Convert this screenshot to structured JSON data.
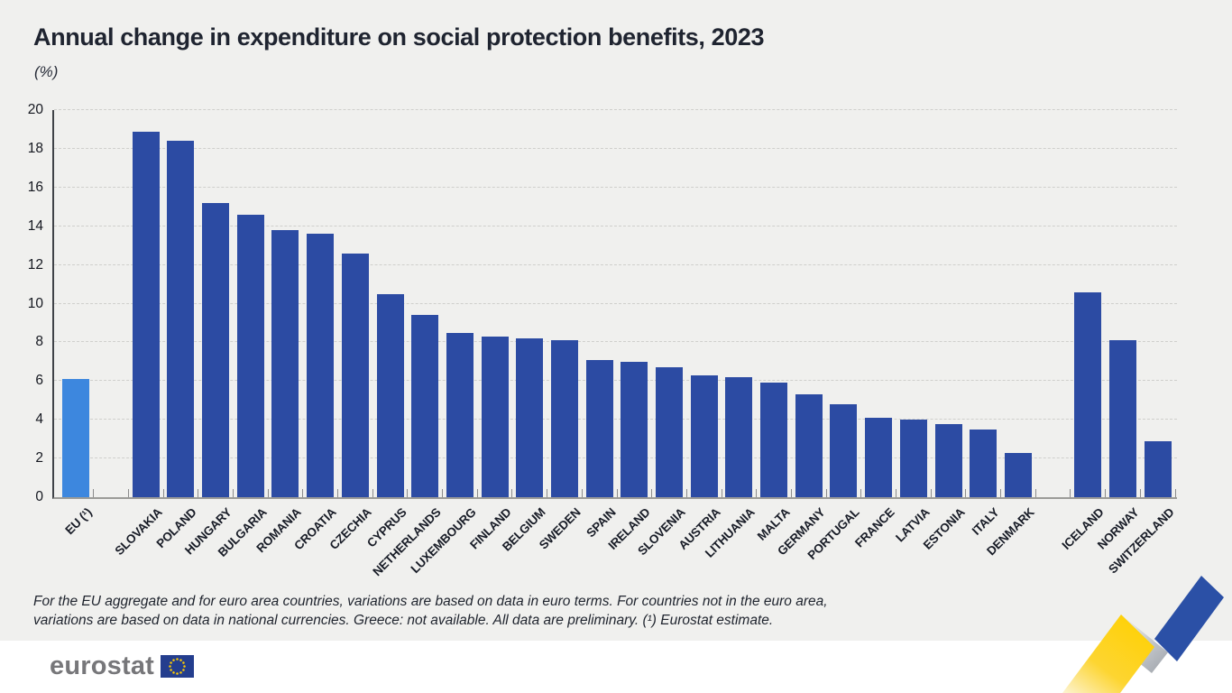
{
  "header": {
    "title": "Annual change in expenditure on social protection benefits, 2023",
    "subtitle": "(%)"
  },
  "chart_data": {
    "type": "bar",
    "title": "Annual change in expenditure on social protection benefits, 2023",
    "xlabel": "",
    "ylabel": "(%)",
    "ylim": [
      0,
      20
    ],
    "yticks": [
      0,
      2,
      4,
      6,
      8,
      10,
      12,
      14,
      16,
      18,
      20
    ],
    "grid": "horizontal dashed",
    "legend": "none",
    "categories": [
      "EU (¹)",
      "SLOVAKIA",
      "POLAND",
      "HUNGARY",
      "BULGARIA",
      "ROMANIA",
      "CROATIA",
      "CZECHIA",
      "CYPRUS",
      "NETHERLANDS",
      "LUXEMBOURG",
      "FINLAND",
      "BELGIUM",
      "SWEDEN",
      "SPAIN",
      "IRELAND",
      "SLOVENIA",
      "AUSTRIA",
      "LITHUANIA",
      "MALTA",
      "GERMANY",
      "PORTUGAL",
      "FRANCE",
      "LATVIA",
      "ESTONIA",
      "ITALY",
      "DENMARK",
      "ICELAND",
      "NORWAY",
      "SWITZERLAND"
    ],
    "values": [
      6.1,
      18.9,
      18.4,
      15.2,
      14.6,
      13.8,
      13.6,
      12.6,
      10.5,
      9.4,
      8.5,
      8.3,
      8.2,
      8.1,
      7.1,
      7.0,
      6.7,
      6.3,
      6.2,
      5.9,
      5.3,
      4.8,
      4.1,
      4.0,
      3.8,
      3.5,
      2.3,
      10.6,
      8.1,
      2.9
    ],
    "highlight_category": "EU (¹)",
    "gap_after": [
      "EU (¹)",
      "DENMARK"
    ],
    "bar_colors": {
      "eu": "#3d87de",
      "default": "#2c4ba3"
    }
  },
  "footnote": {
    "line1": "For the EU aggregate and for euro area countries, variations are based on data in euro terms. For countries not in the euro area,",
    "line2": "variations are based on data in national currencies. Greece: not available. All data are preliminary. (¹) Eurostat estimate."
  },
  "footer": {
    "logo_text": "eurostat"
  },
  "icons": {
    "eu_flag": "eu-flag-icon",
    "ribbon": "zigzag-ribbon-graphic"
  },
  "colors": {
    "background": "#f0f0ee",
    "footer_background": "#ffffff",
    "bar_default": "#2c4ba3",
    "bar_eu": "#3d87de",
    "title_text": "#1f2430",
    "gridline": "#cfcfcc",
    "logo_gray": "#77777a",
    "flag_blue": "#243e8e",
    "star_yellow": "#ffcc00",
    "ribbon_yellow": "#fed10a",
    "ribbon_gray": "#a6abb2",
    "ribbon_blue": "#2b50a6"
  }
}
